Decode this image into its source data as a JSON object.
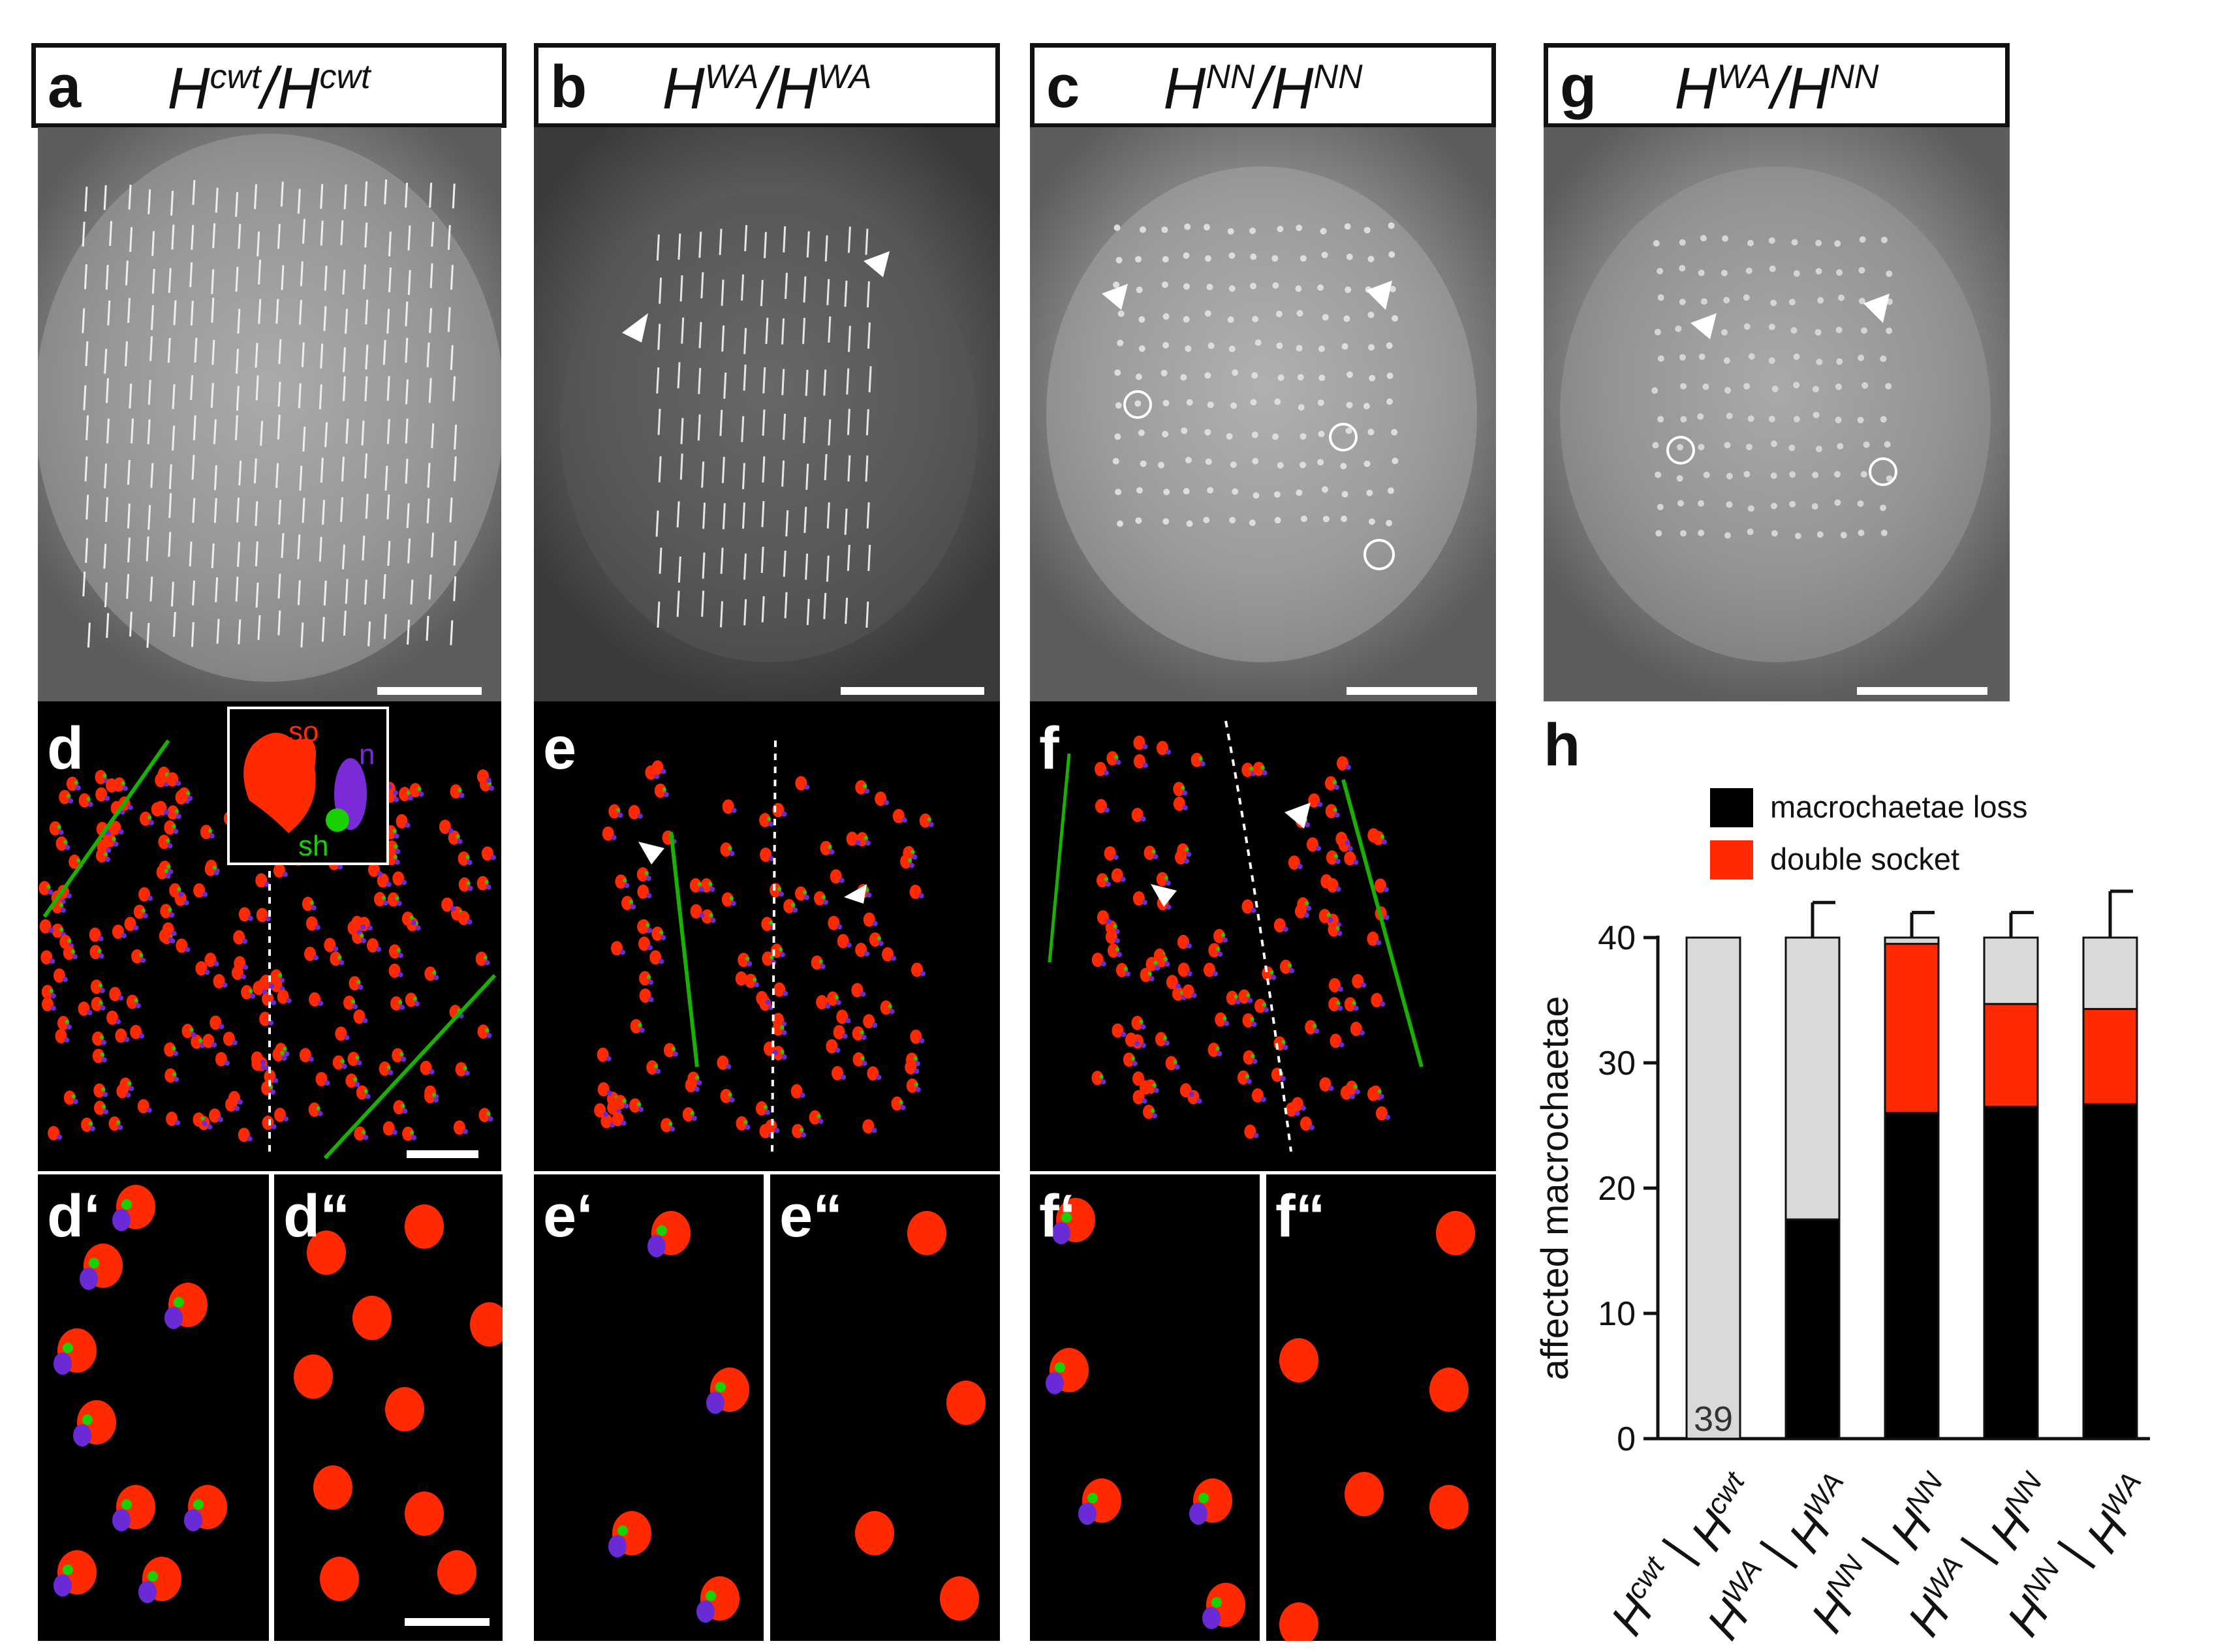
{
  "headers": [
    {
      "letter": "a",
      "base1": "H",
      "sup1": "cwt",
      "sep": "/",
      "base2": "H",
      "sup2": "cwt"
    },
    {
      "letter": "b",
      "base1": "H",
      "sup1": "WA",
      "sep": "/",
      "base2": "H",
      "sup2": "WA"
    },
    {
      "letter": "c",
      "base1": "H",
      "sup1": "NN",
      "sep": "/",
      "base2": "H",
      "sup2": "NN"
    },
    {
      "letter": "g",
      "base1": "H",
      "sup1": "WA",
      "sep": "/",
      "base2": "H",
      "sup2": "NN"
    }
  ],
  "fluor_labels": {
    "d": "d",
    "e": "e",
    "f": "f",
    "d1": "d‘",
    "d2": "d“",
    "e1": "e‘",
    "e2": "e“",
    "f1": "f‘",
    "f2": "f“"
  },
  "inset_labels": {
    "so": "so",
    "n": "n",
    "sh": "sh"
  },
  "panel_h_label": "h",
  "chart_data": {
    "type": "bar",
    "stacked": true,
    "ylabel": "affected macrochaetae",
    "ylim": [
      0,
      40
    ],
    "yticks": [
      0,
      10,
      20,
      30,
      40
    ],
    "categories": [
      {
        "b1": "H",
        "s1": "cwt",
        "b2": "H",
        "s2": "cwt"
      },
      {
        "b1": "H",
        "s1": "WA",
        "b2": "H",
        "s2": "WA"
      },
      {
        "b1": "H",
        "s1": "NN",
        "b2": "H",
        "s2": "NN"
      },
      {
        "b1": "H",
        "s1": "WA",
        "b2": "H",
        "s2": "NN"
      },
      {
        "b1": "H",
        "s1": "NN",
        "b2": "H",
        "s2": "WA"
      }
    ],
    "series": [
      {
        "name": "macrochaetae loss",
        "color": "#000000",
        "values": [
          0,
          17.5,
          26,
          26.5,
          26.7
        ],
        "errors": [
          0,
          2.8,
          2.8,
          2.8,
          2.2
        ]
      },
      {
        "name": "double socket",
        "color": "#ff2a00",
        "values": [
          0,
          0,
          13.5,
          8.2,
          7.6
        ],
        "errors": [
          0,
          0,
          2.5,
          2.7,
          3.0
        ]
      },
      {
        "name": "",
        "color": "#d9d9d9",
        "values": [
          40,
          22.5,
          0.5,
          5.3,
          5.7
        ],
        "errors": [
          0,
          2.8,
          2.0,
          2.0,
          3.7
        ]
      }
    ],
    "bar_annotation": {
      "category_index": 0,
      "text": "39"
    }
  }
}
